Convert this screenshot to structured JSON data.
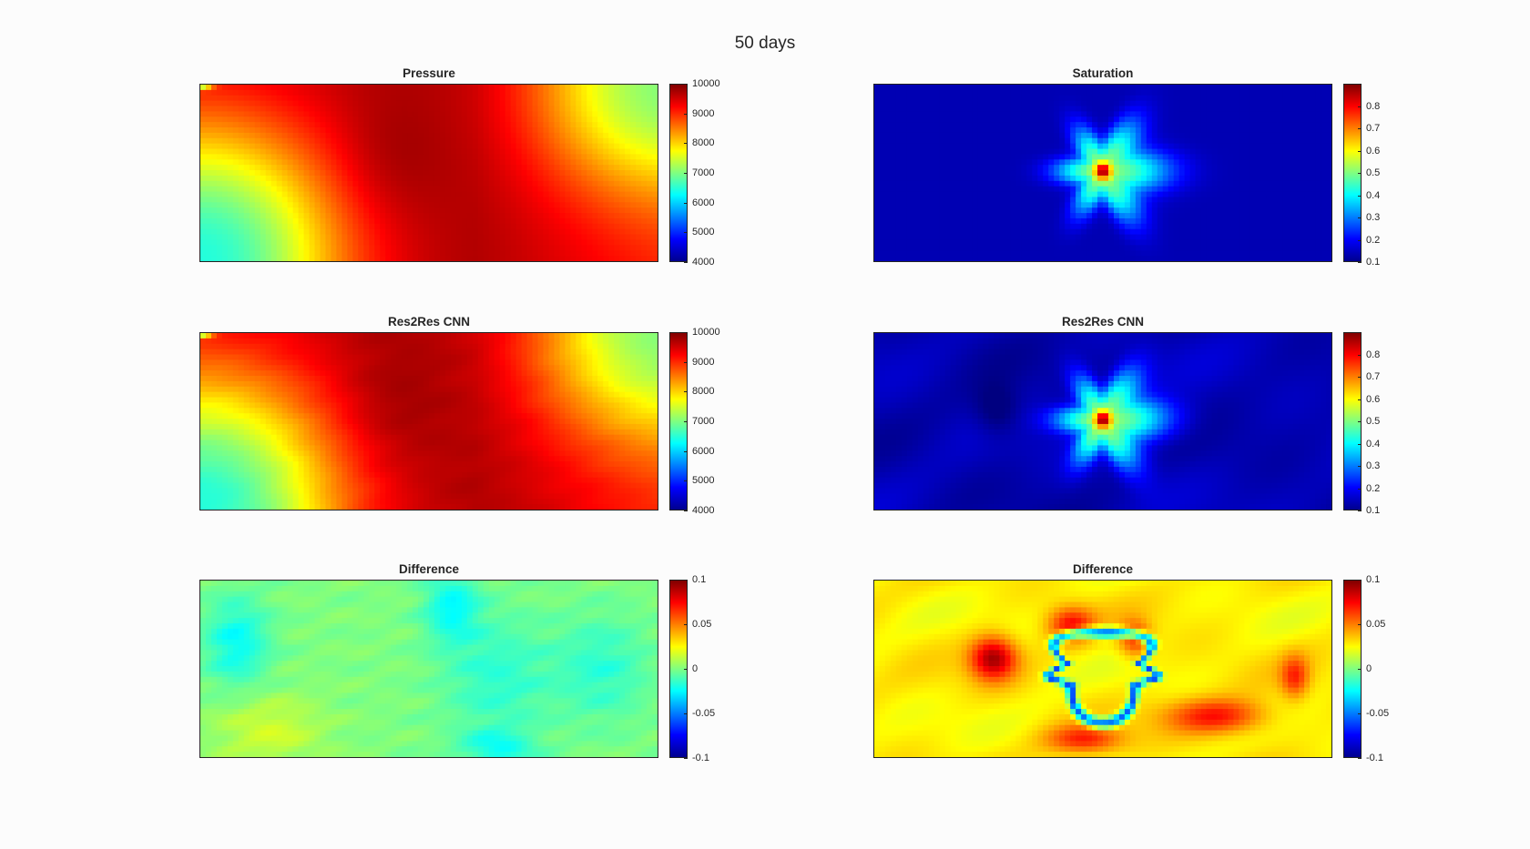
{
  "figure": {
    "title": "50 days"
  },
  "chart_data": [
    {
      "type": "heatmap",
      "title": "Pressure",
      "field": "pressure_true",
      "colorbar": {
        "min": 4000,
        "max": 10000,
        "ticks": [
          "4000",
          "5000",
          "6000",
          "7000",
          "8000",
          "9000",
          "10000"
        ]
      },
      "colormap": "jet"
    },
    {
      "type": "heatmap",
      "title": "Saturation",
      "field": "saturation_true",
      "colorbar": {
        "min": 0.1,
        "max": 0.9,
        "ticks": [
          "0.1",
          "0.2",
          "0.3",
          "0.4",
          "0.5",
          "0.6",
          "0.7",
          "0.8"
        ]
      },
      "colormap": "jet"
    },
    {
      "type": "heatmap",
      "title": "Res2Res CNN",
      "field": "pressure_pred",
      "colorbar": {
        "min": 4000,
        "max": 10000,
        "ticks": [
          "4000",
          "5000",
          "6000",
          "7000",
          "8000",
          "9000",
          "10000"
        ]
      },
      "colormap": "jet"
    },
    {
      "type": "heatmap",
      "title": "Res2Res CNN",
      "field": "saturation_pred",
      "colorbar": {
        "min": 0.1,
        "max": 0.9,
        "ticks": [
          "0.1",
          "0.2",
          "0.3",
          "0.4",
          "0.5",
          "0.6",
          "0.7",
          "0.8"
        ]
      },
      "colormap": "jet"
    },
    {
      "type": "heatmap",
      "title": "Difference",
      "field": "pressure_diff",
      "colorbar": {
        "min": -0.1,
        "max": 0.1,
        "ticks": [
          "-0.1",
          "-0.05",
          "0",
          "0.05",
          "0.1"
        ]
      },
      "colormap": "jet"
    },
    {
      "type": "heatmap",
      "title": "Difference",
      "field": "saturation_diff",
      "colorbar": {
        "min": -0.1,
        "max": 0.1,
        "ticks": [
          "-0.1",
          "-0.05",
          "0",
          "0.05",
          "0.1"
        ]
      },
      "colormap": "jet"
    }
  ]
}
